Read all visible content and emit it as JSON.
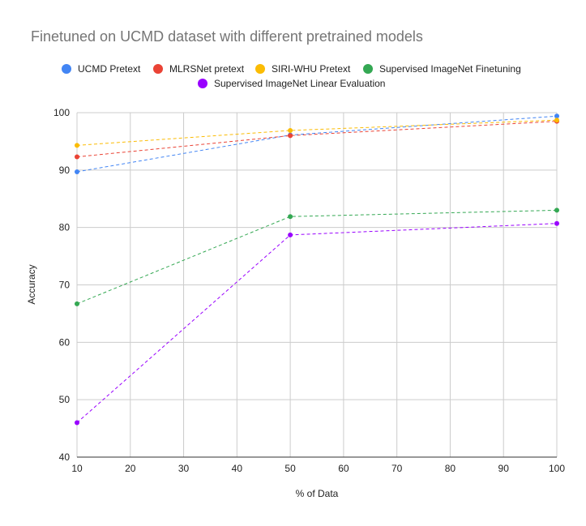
{
  "chart_data": {
    "type": "line",
    "title": "Finetuned on UCMD dataset with different pretrained models",
    "xlabel": "% of Data",
    "ylabel": "Accuracy",
    "x": [
      10,
      50,
      100
    ],
    "xlim": [
      10,
      100
    ],
    "ylim": [
      40,
      100
    ],
    "xticks": [
      10,
      20,
      30,
      40,
      50,
      60,
      70,
      80,
      90,
      100
    ],
    "yticks": [
      40,
      50,
      60,
      70,
      80,
      90,
      100
    ],
    "grid": true,
    "legend_position": "top",
    "line_style": "dashed",
    "series": [
      {
        "name": "UCMD Pretext",
        "color": "#4285F4",
        "values": [
          89.7,
          96.1,
          99.4
        ]
      },
      {
        "name": "MLRSNet pretext",
        "color": "#EA4335",
        "values": [
          92.3,
          96.0,
          98.5
        ]
      },
      {
        "name": "SIRI-WHU Pretext",
        "color": "#FBBC04",
        "values": [
          94.3,
          96.9,
          98.7
        ]
      },
      {
        "name": "Supervised ImageNet Finetuning",
        "color": "#34A853",
        "values": [
          66.7,
          81.9,
          83.0
        ]
      },
      {
        "name": "Supervised ImageNet Linear Evaluation",
        "color": "#9900FF",
        "values": [
          46.0,
          78.7,
          80.7
        ]
      }
    ]
  }
}
